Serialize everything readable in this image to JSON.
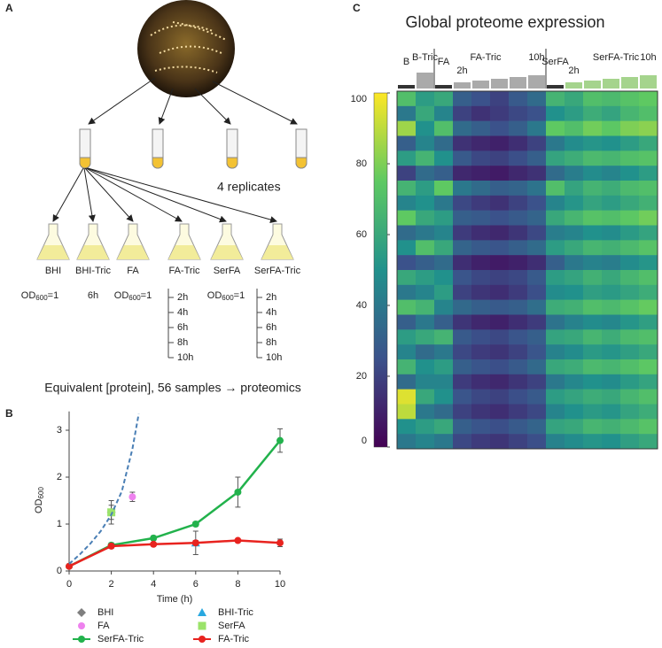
{
  "panel_labels": [
    "A",
    "B",
    "C"
  ],
  "panel_a": {
    "replicates": "4 replicates",
    "conditions": [
      "BHI",
      "BHI-Tric",
      "FA",
      "FA-Tric",
      "SerFA",
      "SerFA-Tric"
    ],
    "od": {
      "pre": "OD",
      "sub": "600",
      "post": "=1"
    },
    "bhi_tric_time": "6h",
    "times": [
      "2h",
      "4h",
      "6h",
      "8h",
      "10h"
    ],
    "caption": "Equivalent [protein], 56 samples → proteomics"
  },
  "chart_data": [
    {
      "type": "line",
      "x_label": "Time (h)",
      "y_label": {
        "main": "OD",
        "sub": "600"
      },
      "xlim": [
        0,
        10
      ],
      "xticks": [
        0,
        2,
        4,
        6,
        8,
        10
      ],
      "ylim": [
        0,
        3.4
      ],
      "yticks": [
        0,
        1,
        2,
        3
      ],
      "series": [
        {
          "name": "BHI",
          "color": "#7f7f7f",
          "marker": "diamond",
          "x": [
            2
          ],
          "values": [
            1.25
          ],
          "errors": [
            0.25
          ]
        },
        {
          "name": "BHI-Tric",
          "color": "#29a8e0",
          "marker": "triangle",
          "x": [
            6
          ],
          "values": [
            0.6
          ],
          "errors": [
            0.25
          ]
        },
        {
          "name": "FA",
          "color": "#ee82ee",
          "marker": "circle",
          "x": [
            3
          ],
          "values": [
            1.58
          ],
          "errors": [
            0.1
          ]
        },
        {
          "name": "SerFA",
          "color": "#9be36a",
          "marker": "square",
          "x": [
            2
          ],
          "values": [
            1.25
          ],
          "errors": [
            0.15
          ]
        },
        {
          "name": "SerFA-Tric",
          "color": "#22b24c",
          "marker": "circle",
          "line": "solid",
          "x": [
            0,
            2,
            4,
            6,
            8,
            10
          ],
          "values": [
            0.1,
            0.55,
            0.7,
            1.0,
            1.68,
            2.78
          ],
          "errors": [
            0.02,
            0.05,
            0.05,
            0.05,
            0.32,
            0.25
          ]
        },
        {
          "name": "FA-Tric",
          "color": "#e8231f",
          "marker": "circle",
          "line": "solid",
          "x": [
            0,
            2,
            4,
            6,
            8,
            10
          ],
          "values": [
            0.1,
            0.53,
            0.57,
            0.6,
            0.65,
            0.6
          ],
          "errors": [
            0.02,
            0.05,
            0.03,
            0.05,
            0.03,
            0.08
          ]
        },
        {
          "color": "#4a7fb5",
          "line": "dashed",
          "x": [
            0,
            0.5,
            1,
            1.5,
            2,
            2.5,
            3,
            3.3
          ],
          "values": [
            0.15,
            0.35,
            0.58,
            0.85,
            1.2,
            1.7,
            2.6,
            3.35
          ]
        }
      ]
    },
    {
      "type": "heatmap",
      "title": "Global proteome expression",
      "columns": [
        "B",
        "B-Tric",
        "FA",
        "2h",
        null,
        null,
        null,
        "10h",
        "SerFA",
        "2h",
        null,
        null,
        null,
        "10h"
      ],
      "groups": [
        "FA-Tric",
        "SerFA-Tric"
      ],
      "clim": [
        0,
        100
      ],
      "cticks": [
        0,
        20,
        40,
        60,
        80,
        100
      ],
      "colormap": [
        "#440154",
        "#3b528b",
        "#21918c",
        "#5ec962",
        "#fde725"
      ],
      "values": [
        [
          70,
          55,
          60,
          30,
          25,
          20,
          28,
          35,
          65,
          60,
          70,
          68,
          72,
          75
        ],
        [
          40,
          60,
          45,
          20,
          15,
          18,
          22,
          25,
          50,
          55,
          62,
          58,
          66,
          70
        ],
        [
          85,
          50,
          70,
          35,
          30,
          25,
          30,
          40,
          75,
          70,
          78,
          74,
          80,
          82
        ],
        [
          30,
          45,
          35,
          15,
          12,
          10,
          14,
          20,
          40,
          48,
          52,
          50,
          55,
          60
        ],
        [
          55,
          65,
          50,
          28,
          22,
          20,
          24,
          30,
          58,
          62,
          68,
          66,
          70,
          72
        ],
        [
          20,
          35,
          30,
          12,
          10,
          8,
          12,
          15,
          35,
          42,
          48,
          45,
          50,
          55
        ],
        [
          65,
          55,
          75,
          40,
          35,
          30,
          32,
          38,
          70,
          58,
          65,
          62,
          68,
          70
        ],
        [
          45,
          50,
          40,
          22,
          18,
          15,
          20,
          25,
          45,
          52,
          58,
          55,
          60,
          64
        ],
        [
          75,
          60,
          55,
          30,
          28,
          25,
          28,
          32,
          60,
          66,
          72,
          70,
          74,
          78
        ],
        [
          35,
          40,
          45,
          18,
          14,
          12,
          16,
          22,
          42,
          45,
          50,
          48,
          54,
          58
        ],
        [
          50,
          70,
          60,
          32,
          28,
          26,
          30,
          35,
          55,
          60,
          66,
          64,
          68,
          72
        ],
        [
          25,
          30,
          35,
          14,
          10,
          8,
          10,
          14,
          30,
          40,
          44,
          42,
          48,
          52
        ],
        [
          60,
          55,
          50,
          26,
          22,
          20,
          22,
          28,
          55,
          58,
          64,
          60,
          66,
          70
        ],
        [
          40,
          45,
          55,
          20,
          16,
          14,
          18,
          24,
          48,
          50,
          56,
          54,
          58,
          62
        ],
        [
          70,
          65,
          45,
          34,
          30,
          28,
          30,
          36,
          62,
          64,
          70,
          68,
          72,
          76
        ],
        [
          30,
          40,
          30,
          16,
          12,
          10,
          14,
          18,
          38,
          44,
          48,
          46,
          52,
          56
        ],
        [
          55,
          60,
          65,
          28,
          24,
          22,
          26,
          30,
          58,
          60,
          66,
          62,
          68,
          70
        ],
        [
          45,
          35,
          40,
          22,
          18,
          16,
          20,
          26,
          44,
          48,
          54,
          52,
          56,
          60
        ],
        [
          65,
          50,
          55,
          30,
          26,
          24,
          28,
          34,
          60,
          62,
          68,
          66,
          70,
          74
        ],
        [
          35,
          45,
          45,
          18,
          14,
          12,
          16,
          20,
          40,
          46,
          50,
          48,
          54,
          58
        ],
        [
          95,
          60,
          50,
          26,
          22,
          20,
          24,
          28,
          55,
          58,
          62,
          60,
          66,
          70
        ],
        [
          90,
          40,
          35,
          20,
          16,
          14,
          18,
          22,
          45,
          50,
          54,
          52,
          58,
          62
        ],
        [
          50,
          55,
          60,
          30,
          26,
          24,
          28,
          32,
          58,
          60,
          66,
          64,
          68,
          72
        ],
        [
          40,
          45,
          40,
          22,
          18,
          16,
          20,
          24,
          44,
          48,
          52,
          50,
          56,
          60
        ]
      ]
    }
  ]
}
